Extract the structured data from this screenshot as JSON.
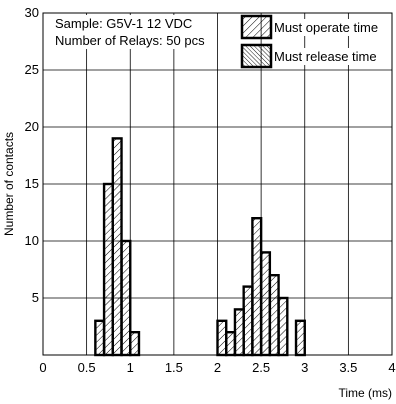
{
  "chart_data": {
    "type": "histogram",
    "xlabel": "Time (ms)",
    "ylabel": "Number of contacts",
    "xlim": [
      0,
      4
    ],
    "ylim": [
      0,
      30
    ],
    "xticks": [
      0,
      0.5,
      1,
      1.5,
      2,
      2.5,
      3,
      3.5,
      4
    ],
    "xtick_labels": [
      "0",
      "0.5",
      "1",
      "1.5",
      "2",
      "2.5",
      "3",
      "3.5",
      "4"
    ],
    "yticks": [
      5,
      10,
      15,
      20,
      25,
      30
    ],
    "ytick_labels": [
      "5",
      "10",
      "15",
      "20",
      "25",
      "30"
    ],
    "grid": true,
    "bin_width": 0.1,
    "annotations": [
      "Sample: G5V-1 12 VDC",
      "Number of Relays: 50 pcs"
    ],
    "legend_position": "top-right",
    "series": [
      {
        "name": "Must operate time",
        "hatch": "forward-diagonal",
        "bins": [
          {
            "x0": 0.6,
            "x1": 0.7,
            "count": 3
          },
          {
            "x0": 0.7,
            "x1": 0.8,
            "count": 15
          },
          {
            "x0": 0.8,
            "x1": 0.9,
            "count": 19
          },
          {
            "x0": 0.9,
            "x1": 1.0,
            "count": 10
          },
          {
            "x0": 1.0,
            "x1": 1.1,
            "count": 2
          },
          {
            "x0": 2.0,
            "x1": 2.1,
            "count": 3
          },
          {
            "x0": 2.1,
            "x1": 2.2,
            "count": 2
          },
          {
            "x0": 2.2,
            "x1": 2.3,
            "count": 4
          },
          {
            "x0": 2.3,
            "x1": 2.4,
            "count": 6
          },
          {
            "x0": 2.4,
            "x1": 2.5,
            "count": 12
          },
          {
            "x0": 2.5,
            "x1": 2.6,
            "count": 9
          },
          {
            "x0": 2.6,
            "x1": 2.7,
            "count": 7
          },
          {
            "x0": 2.7,
            "x1": 2.8,
            "count": 5
          },
          {
            "x0": 2.9,
            "x1": 3.0,
            "count": 3
          }
        ]
      },
      {
        "name": "Must release time",
        "hatch": "back-diagonal",
        "bins": []
      }
    ]
  }
}
